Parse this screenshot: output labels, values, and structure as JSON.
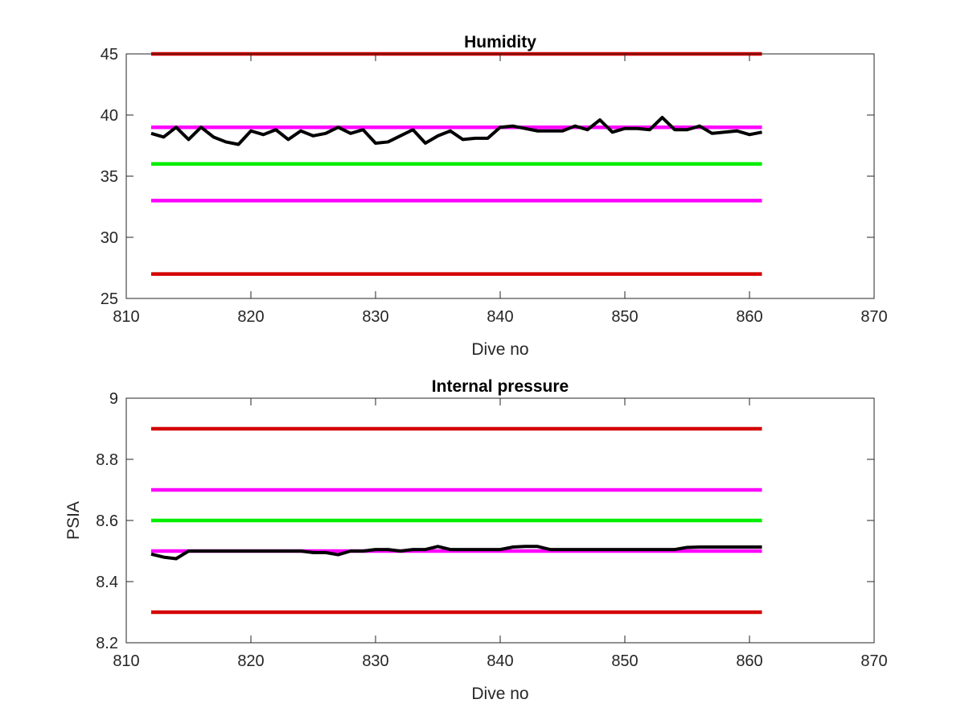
{
  "colors": {
    "limit_red": "#d40000",
    "limit_magenta": "#ff00ff",
    "target_green": "#00ee00",
    "data_black": "#000000",
    "axis": "#262626"
  },
  "chart_data": [
    {
      "type": "line",
      "title": "Humidity",
      "xlabel": "Dive no",
      "ylabel": "",
      "xlim": [
        810,
        870
      ],
      "ylim": [
        25,
        45
      ],
      "xticks": [
        810,
        820,
        830,
        840,
        850,
        860,
        870
      ],
      "yticks": [
        25,
        30,
        35,
        40,
        45
      ],
      "grid": false,
      "reference_lines": [
        {
          "y": 45,
          "x": [
            812,
            861
          ],
          "color_key": "limit_red"
        },
        {
          "y": 39,
          "x": [
            812,
            861
          ],
          "color_key": "limit_magenta"
        },
        {
          "y": 36,
          "x": [
            812,
            861
          ],
          "color_key": "target_green"
        },
        {
          "y": 33,
          "x": [
            812,
            861
          ],
          "color_key": "limit_magenta"
        },
        {
          "y": 27,
          "x": [
            812,
            861
          ],
          "color_key": "limit_red"
        }
      ],
      "series": [
        {
          "color_key": "data_black",
          "x": [
            812,
            813,
            814,
            815,
            816,
            817,
            818,
            819,
            820,
            821,
            822,
            823,
            824,
            825,
            826,
            827,
            828,
            829,
            830,
            831,
            832,
            833,
            834,
            835,
            836,
            837,
            838,
            839,
            840,
            841,
            842,
            843,
            844,
            845,
            846,
            847,
            848,
            849,
            850,
            851,
            852,
            853,
            854,
            855,
            856,
            857,
            858,
            859,
            860,
            861
          ],
          "y": [
            38.5,
            38.2,
            39.0,
            38.0,
            39.0,
            38.2,
            37.8,
            37.6,
            38.7,
            38.4,
            38.8,
            38.0,
            38.7,
            38.3,
            38.5,
            39.0,
            38.5,
            38.8,
            37.7,
            37.8,
            38.3,
            38.8,
            37.7,
            38.3,
            38.7,
            38.0,
            38.1,
            38.1,
            39.0,
            39.1,
            38.9,
            38.7,
            38.7,
            38.7,
            39.1,
            38.8,
            39.6,
            38.6,
            38.9,
            38.9,
            38.8,
            39.8,
            38.8,
            38.8,
            39.1,
            38.5,
            38.6,
            38.7,
            38.4,
            38.6
          ]
        }
      ]
    },
    {
      "type": "line",
      "title": "Internal pressure",
      "xlabel": "Dive no",
      "ylabel": "PSIA",
      "xlim": [
        810,
        870
      ],
      "ylim": [
        8.2,
        9.0
      ],
      "xticks": [
        810,
        820,
        830,
        840,
        850,
        860,
        870
      ],
      "yticks": [
        8.2,
        8.4,
        8.6,
        8.8,
        9.0
      ],
      "yticklabels": [
        "8.2",
        "8.4",
        "8.6",
        "8.8",
        "9"
      ],
      "grid": false,
      "reference_lines": [
        {
          "y": 8.9,
          "x": [
            812,
            861
          ],
          "color_key": "limit_red"
        },
        {
          "y": 8.7,
          "x": [
            812,
            861
          ],
          "color_key": "limit_magenta"
        },
        {
          "y": 8.6,
          "x": [
            812,
            861
          ],
          "color_key": "target_green"
        },
        {
          "y": 8.5,
          "x": [
            812,
            861
          ],
          "color_key": "limit_magenta"
        },
        {
          "y": 8.3,
          "x": [
            812,
            861
          ],
          "color_key": "limit_red"
        }
      ],
      "series": [
        {
          "color_key": "data_black",
          "x": [
            812,
            813,
            814,
            815,
            816,
            817,
            818,
            819,
            820,
            821,
            822,
            823,
            824,
            825,
            826,
            827,
            828,
            829,
            830,
            831,
            832,
            833,
            834,
            835,
            836,
            837,
            838,
            839,
            840,
            841,
            842,
            843,
            844,
            845,
            846,
            847,
            848,
            849,
            850,
            851,
            852,
            853,
            854,
            855,
            856,
            857,
            858,
            859,
            860,
            861
          ],
          "y": [
            8.49,
            8.48,
            8.475,
            8.5,
            8.5,
            8.5,
            8.5,
            8.5,
            8.5,
            8.5,
            8.5,
            8.5,
            8.5,
            8.495,
            8.495,
            8.488,
            8.5,
            8.5,
            8.505,
            8.505,
            8.5,
            8.505,
            8.505,
            8.515,
            8.505,
            8.505,
            8.505,
            8.505,
            8.505,
            8.513,
            8.515,
            8.515,
            8.505,
            8.505,
            8.505,
            8.505,
            8.505,
            8.505,
            8.505,
            8.505,
            8.505,
            8.505,
            8.505,
            8.512,
            8.513,
            8.513,
            8.513,
            8.513,
            8.513,
            8.513
          ]
        }
      ]
    }
  ]
}
